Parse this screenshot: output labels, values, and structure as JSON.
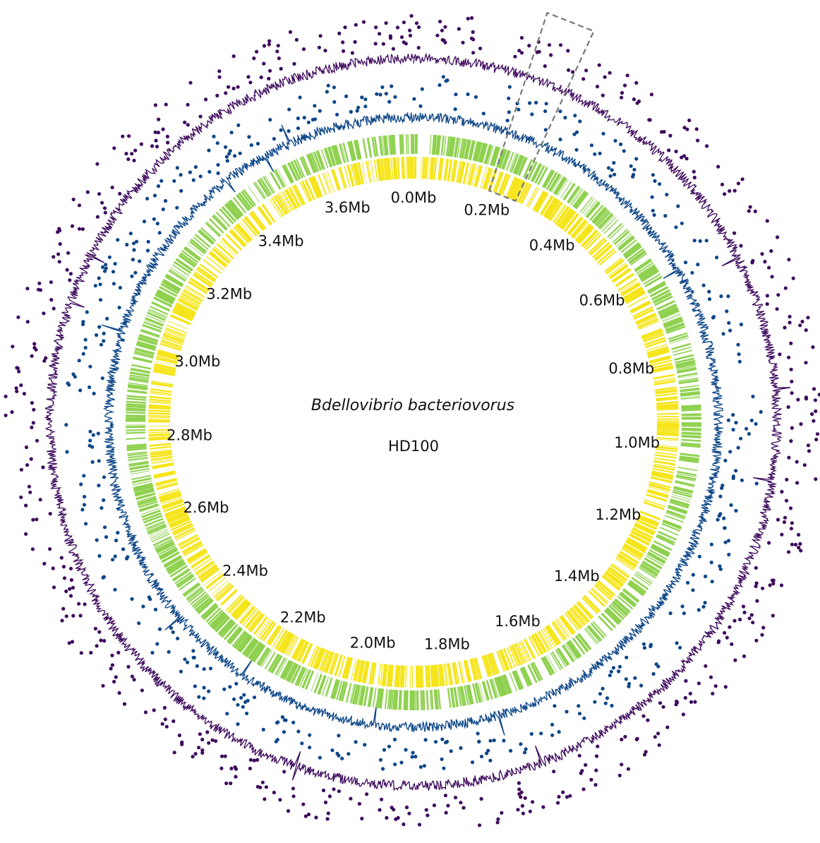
{
  "organism": {
    "species": "Bdellovibrio bacteriovorus",
    "strain": "HD100"
  },
  "genome_length_mb": 3.78,
  "tick_labels": [
    "0.0Mb",
    "0.2Mb",
    "0.4Mb",
    "0.6Mb",
    "0.8Mb",
    "1.0Mb",
    "1.2Mb",
    "1.4Mb",
    "1.6Mb",
    "1.8Mb",
    "2.0Mb",
    "2.2Mb",
    "2.4Mb",
    "2.6Mb",
    "2.8Mb",
    "3.0Mb",
    "3.2Mb",
    "3.4Mb",
    "3.6Mb"
  ],
  "tracks": [
    {
      "id": "coverage-outer",
      "kind": "signal",
      "color": "#3d0a5c"
    },
    {
      "id": "outliers-outer",
      "kind": "points",
      "color": "#3d0a5c"
    },
    {
      "id": "coverage-inner",
      "kind": "signal",
      "color": "#0d4687"
    },
    {
      "id": "outliers-inner",
      "kind": "points",
      "color": "#0d4687"
    },
    {
      "id": "genes-forward",
      "kind": "bands",
      "color": "#8fd14f"
    },
    {
      "id": "genes-reverse",
      "kind": "bands",
      "color": "#f5e51b"
    }
  ],
  "highlight_region": {
    "start_mb": 0.19,
    "end_mb": 0.26,
    "style": "dashed",
    "color": "#777777"
  }
}
